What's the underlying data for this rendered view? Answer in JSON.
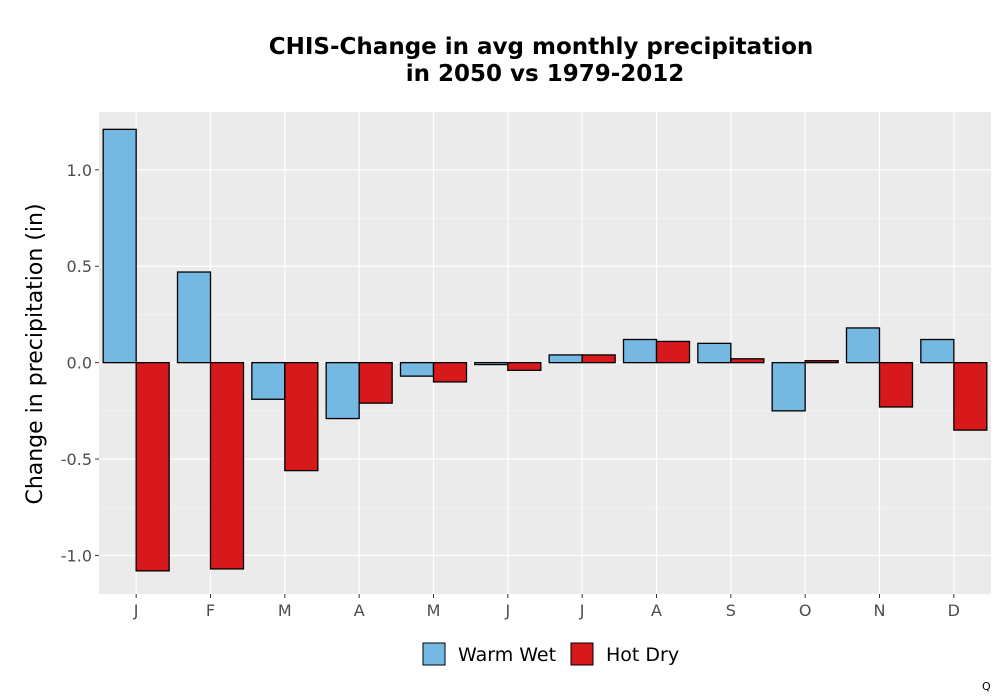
{
  "chart_data": {
    "type": "bar",
    "title": [
      "CHIS-Change in avg monthly precipitation",
      "in 2050 vs 1979-2012"
    ],
    "xlabel": "",
    "ylabel": "Change in precipitation (in)",
    "categories": [
      "J",
      "F",
      "M",
      "A",
      "M",
      "J",
      "J",
      "A",
      "S",
      "O",
      "N",
      "D"
    ],
    "series": [
      {
        "name": "Warm Wet",
        "color": "#75b8e1",
        "values": [
          1.21,
          0.47,
          -0.19,
          -0.29,
          -0.07,
          -0.01,
          0.04,
          0.12,
          0.1,
          -0.25,
          0.18,
          0.12
        ]
      },
      {
        "name": "Hot Dry",
        "color": "#d7191c",
        "values": [
          -1.08,
          -1.07,
          -0.56,
          -0.21,
          -0.1,
          -0.04,
          0.04,
          0.11,
          0.02,
          0.01,
          -0.23,
          -0.35
        ]
      }
    ],
    "ylim": [
      -1.2,
      1.3
    ],
    "yticks": [
      1.0,
      0.5,
      0.0,
      -0.5,
      -1.0
    ],
    "ytick_labels": [
      "1.0",
      "0.5",
      "0.0",
      "-0.5",
      "-1.0"
    ],
    "grid": true,
    "legend_position": "bottom",
    "panel_background": "#ebebeb",
    "bar_outline_color": "#000000"
  },
  "footer_mark": "Q"
}
